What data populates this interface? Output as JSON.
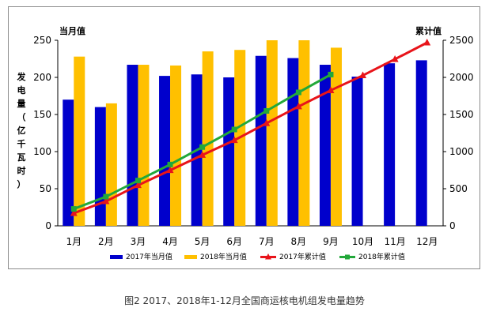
{
  "chart_data": {
    "type": "bar",
    "categories": [
      "1月",
      "2月",
      "3月",
      "4月",
      "5月",
      "6月",
      "7月",
      "8月",
      "9月",
      "10月",
      "11月",
      "12月"
    ],
    "left_axis": {
      "label": "当月值",
      "ylabel": "发电量（亿千瓦时）",
      "ylim": [
        0,
        250
      ],
      "ticks": [
        0,
        50,
        100,
        150,
        200,
        250
      ]
    },
    "right_axis": {
      "label": "累计值",
      "ylim": [
        0,
        2500
      ],
      "ticks": [
        0,
        500,
        1000,
        1500,
        2000,
        2500
      ]
    },
    "series": [
      {
        "name": "2017年当月值",
        "kind": "bar",
        "axis": "left",
        "color": "#0000cc",
        "values": [
          170,
          160,
          217,
          202,
          204,
          200,
          229,
          226,
          217,
          201,
          219,
          223
        ]
      },
      {
        "name": "2018年当月值",
        "kind": "bar",
        "axis": "left",
        "color": "#ffc000",
        "values": [
          228,
          165,
          217,
          216,
          235,
          237,
          250,
          250,
          240,
          null,
          null,
          null
        ]
      },
      {
        "name": "2017年累计值",
        "kind": "line",
        "axis": "right",
        "color": "#e8141a",
        "marker": "triangle",
        "values": [
          170,
          330,
          547,
          749,
          953,
          1153,
          1382,
          1608,
          1825,
          2026,
          2245,
          2468
        ]
      },
      {
        "name": "2018年累计值",
        "kind": "line",
        "axis": "right",
        "color": "#22a83a",
        "marker": "square",
        "values": [
          228,
          393,
          610,
          826,
          1061,
          1298,
          1548,
          1798,
          2038,
          null,
          null,
          null
        ]
      }
    ],
    "grid": false,
    "legend": "bottom"
  },
  "caption": "图2  2017、2018年1-12月全国商运核电机组发电量趋势"
}
